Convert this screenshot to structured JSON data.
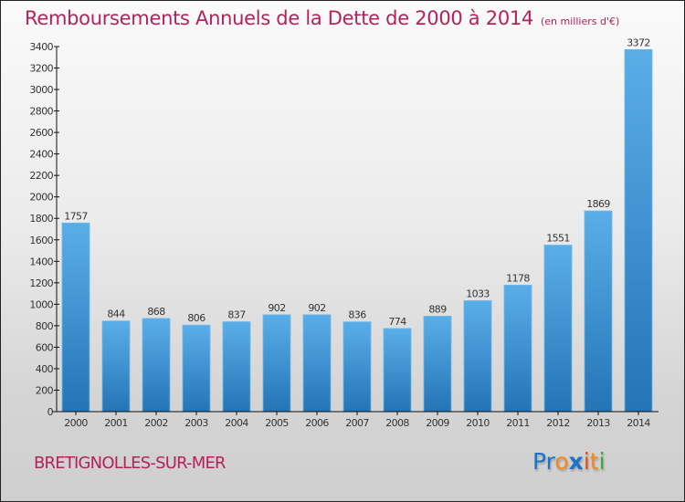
{
  "header": {
    "title": "Remboursements Annuels de la Dette de 2000 à 2014",
    "unit": "(en milliers d'€)"
  },
  "footer": {
    "city": "BRETIGNOLLES-SUR-MER",
    "logo": {
      "letters": [
        "P",
        "r",
        "o",
        "x",
        "i",
        "t",
        "i"
      ],
      "colors": [
        "#1a74c9",
        "#1a74c9",
        "#f08a1c",
        "#1a74c9",
        "#e64a19",
        "#f08a1c",
        "#3aa844"
      ]
    }
  },
  "colors": {
    "title": "#b5225a",
    "bar_top": "#5aaee8",
    "bar_bottom": "#2474b6"
  },
  "chart_data": {
    "type": "bar",
    "title": "Remboursements Annuels de la Dette de 2000 à 2014",
    "subtitle": "(en milliers d'€)",
    "xlabel": "",
    "ylabel": "",
    "categories": [
      "2000",
      "2001",
      "2002",
      "2003",
      "2004",
      "2005",
      "2006",
      "2007",
      "2008",
      "2009",
      "2010",
      "2011",
      "2012",
      "2013",
      "2014"
    ],
    "values": [
      1757,
      844,
      868,
      806,
      837,
      902,
      902,
      836,
      774,
      889,
      1033,
      1178,
      1551,
      1869,
      3372
    ],
    "ylim": [
      0,
      3400
    ],
    "yticks": [
      0,
      200,
      400,
      600,
      800,
      1000,
      1200,
      1400,
      1600,
      1800,
      2000,
      2200,
      2400,
      2600,
      2800,
      3000,
      3200,
      3400
    ],
    "grid": false,
    "legend": "none",
    "data_labels": true
  }
}
